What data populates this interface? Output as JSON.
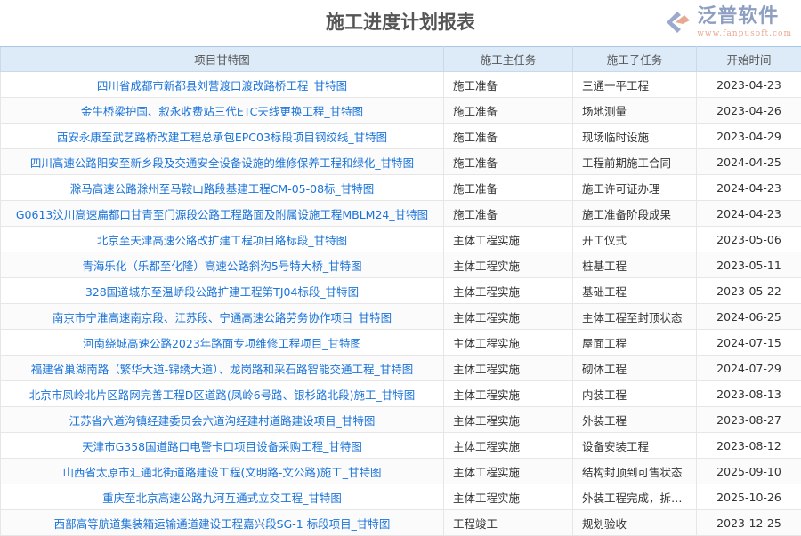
{
  "title": "施工进度计划报表",
  "columns": [
    "项目甘特图",
    "施工主任务",
    "施工子任务",
    "开始时间"
  ],
  "rows": [
    [
      "四川省成都市新都县刘营渡口渡改路桥工程_甘特图",
      "施工准备",
      "三通一平工程",
      "2023-04-23"
    ],
    [
      "金牛桥梁护国、叙永收费站三代ETC天线更换工程_甘特图",
      "施工准备",
      "场地测量",
      "2023-04-26"
    ],
    [
      "西安永康至武艺路桥改建工程总承包EPC03标段项目钢绞线_甘特图",
      "施工准备",
      "现场临时设施",
      "2023-04-29"
    ],
    [
      "四川高速公路阳安至新乡段及交通安全设备设施的维修保养工程和绿化_甘特图",
      "施工准备",
      "工程前期施工合同",
      "2024-04-25"
    ],
    [
      "滁马高速公路滁州至马鞍山路段基建工程CM-05-08标_甘特图",
      "施工准备",
      "施工许可证办理",
      "2024-04-23"
    ],
    [
      "G0613汶川高速扁都口甘青至门源段公路工程路面及附属设施工程MBLM24_甘特图",
      "施工准备",
      "施工准备阶段成果",
      "2024-04-23"
    ],
    [
      "北京至天津高速公路改扩建工程项目路标段_甘特图",
      "主体工程实施",
      "开工仪式",
      "2023-05-06"
    ],
    [
      "青海乐化（乐都至化隆）高速公路斜沟5号特大桥_甘特图",
      "主体工程实施",
      "桩基工程",
      "2023-05-11"
    ],
    [
      "328国道城东至温峤段公路扩建工程第TJ04标段_甘特图",
      "主体工程实施",
      "基础工程",
      "2023-05-22"
    ],
    [
      "南京市宁淮高速南京段、江苏段、宁通高速公路劳务协作项目_甘特图",
      "主体工程实施",
      "主体工程至封顶状态",
      "2024-06-25"
    ],
    [
      "河南绕城高速公路2023年路面专项维修工程项目_甘特图",
      "主体工程实施",
      "屋面工程",
      "2024-07-15"
    ],
    [
      "福建省巢湖南路（繁华大道-锦绣大道）、龙岗路和采石路智能交通工程_甘特图",
      "主体工程实施",
      "砌体工程",
      "2024-07-29"
    ],
    [
      "北京市凤岭北片区路网完善工程D区道路(凤岭6号路、银杉路北段)施工_甘特图",
      "主体工程实施",
      "内装工程",
      "2023-08-13"
    ],
    [
      "江苏省六道沟镇经建委员会六道沟经建村道路建设项目_甘特图",
      "主体工程实施",
      "外装工程",
      "2023-08-27"
    ],
    [
      "天津市G358国道路口电警卡口项目设备采购工程_甘特图",
      "主体工程实施",
      "设备安装工程",
      "2023-08-12"
    ],
    [
      "山西省太原市汇通北街道路建设工程(文明路-文公路)施工_甘特图",
      "主体工程实施",
      "结构封顶到可售状态",
      "2025-09-10"
    ],
    [
      "重庆至北京高速公路九河互通式立交工程_甘特图",
      "主体工程实施",
      "外装工程完成，拆…",
      "2025-10-26"
    ],
    [
      "西部高等航道集装箱运输通道建设工程嘉兴段SG-1 标段项目_甘特图",
      "工程竣工",
      "规划验收",
      "2023-12-25"
    ]
  ],
  "watermark": {
    "brand": "泛普软件",
    "url": "www.fanpusoft.com"
  },
  "colors": {
    "link": "#1a73d9",
    "header_bg": "#ddebf9"
  }
}
